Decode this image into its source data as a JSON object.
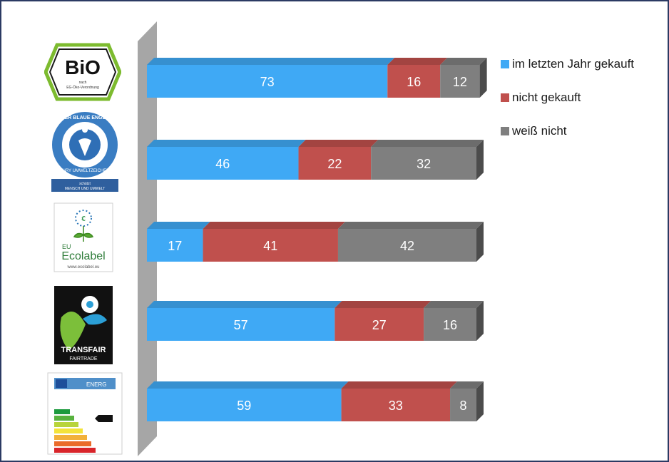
{
  "chart_data": {
    "type": "bar",
    "orientation": "horizontal",
    "stacked": true,
    "categories": [
      "Bio-Siegel",
      "Der Blaue Engel",
      "EU Ecolabel",
      "TransFair Fairtrade",
      "EU Energielabel"
    ],
    "series": [
      {
        "name": "im letzten Jahr gekauft",
        "color": "#3fa9f5",
        "values": [
          73,
          46,
          17,
          57,
          59
        ]
      },
      {
        "name": "nicht gekauft",
        "color": "#c0504d",
        "values": [
          16,
          22,
          41,
          27,
          33
        ]
      },
      {
        "name": "weiß nicht",
        "color": "#7f7f7f",
        "values": [
          12,
          32,
          42,
          16,
          8
        ]
      }
    ],
    "xlim": [
      0,
      100
    ],
    "legend_position": "top-right",
    "grid": false
  },
  "logos": {
    "bio": {
      "main": "BiO",
      "sub1": "nach",
      "sub2": "EG-Öko-Verordnung",
      "icon": "bio-siegel-hexagon"
    },
    "blaue_engel": {
      "ring": "DER BLAUE ENGEL",
      "ring2": "JURY UMWELTZEICHEN",
      "band1": "schützt",
      "band2": "MENSCH UND UMWELT",
      "icon": "blue-angel-seal"
    },
    "ecolabel": {
      "eu": "EU",
      "name": "Ecolabel",
      "url": "www.ecolabel.eu",
      "icon": "eu-flower"
    },
    "fairtrade": {
      "name": "TRANSFAIR",
      "sub": "FAIRTRADE",
      "icon": "fairtrade-figure"
    },
    "energy": {
      "title": "ENERG",
      "icon": "energy-label"
    }
  }
}
